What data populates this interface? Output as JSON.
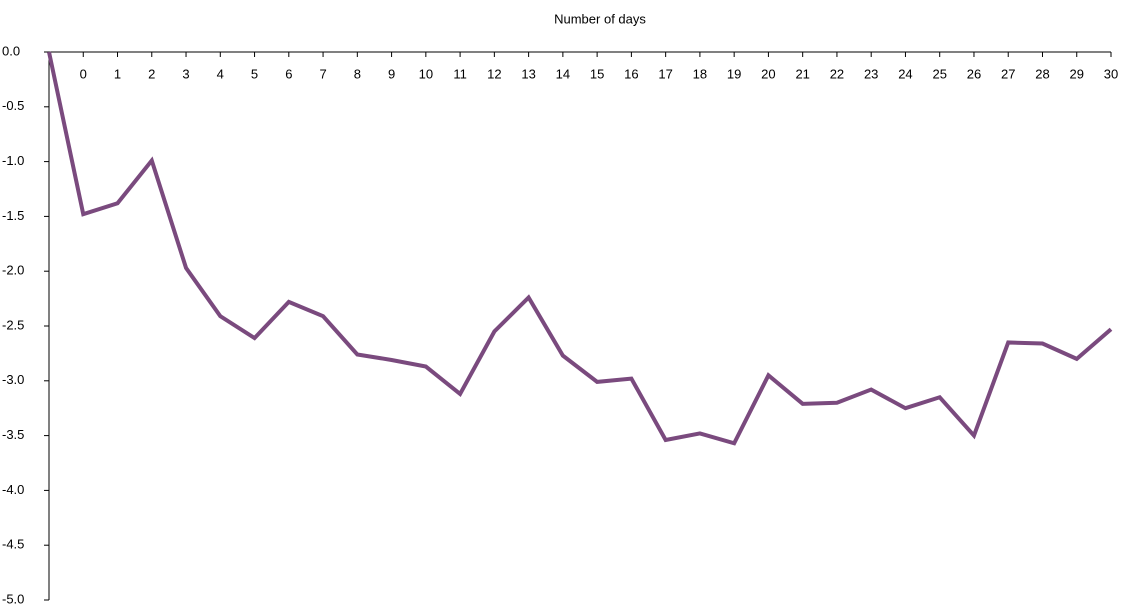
{
  "chart_data": {
    "type": "line",
    "x_label": "Number of days",
    "categories": [
      null,
      "0",
      "1",
      "2",
      "3",
      "4",
      "5",
      "6",
      "7",
      "8",
      "9",
      "10",
      "11",
      "12",
      "13",
      "14",
      "15",
      "16",
      "17",
      "18",
      "19",
      "20",
      "21",
      "22",
      "23",
      "24",
      "25",
      "26",
      "27",
      "28",
      "29",
      "30"
    ],
    "series": [
      {
        "color": "#7a4a7e",
        "values": [
          0.0,
          -1.48,
          -1.38,
          -0.99,
          -1.97,
          -2.41,
          -2.61,
          -2.28,
          -2.41,
          -2.76,
          -2.81,
          -2.87,
          -3.12,
          -2.55,
          -2.24,
          -2.77,
          -3.01,
          -2.98,
          -3.54,
          -3.48,
          -3.57,
          -2.95,
          -3.21,
          -3.2,
          -3.08,
          -3.25,
          -3.15,
          -3.5,
          -2.65,
          -2.66,
          -2.8,
          -2.53
        ]
      }
    ],
    "ylim": [
      0,
      -5
    ],
    "yticks": [
      {
        "value": 0,
        "label": "0.0"
      },
      -0.5,
      {
        "value": -1,
        "label": "-1.0"
      },
      -1.5,
      {
        "value": -2,
        "label": "-2.0"
      },
      -2.5,
      {
        "value": -3,
        "label": "-3.0"
      },
      -3.5,
      {
        "value": -4,
        "label": "-4.0"
      },
      -4.5,
      {
        "value": -5,
        "label": "-5.0"
      }
    ]
  }
}
